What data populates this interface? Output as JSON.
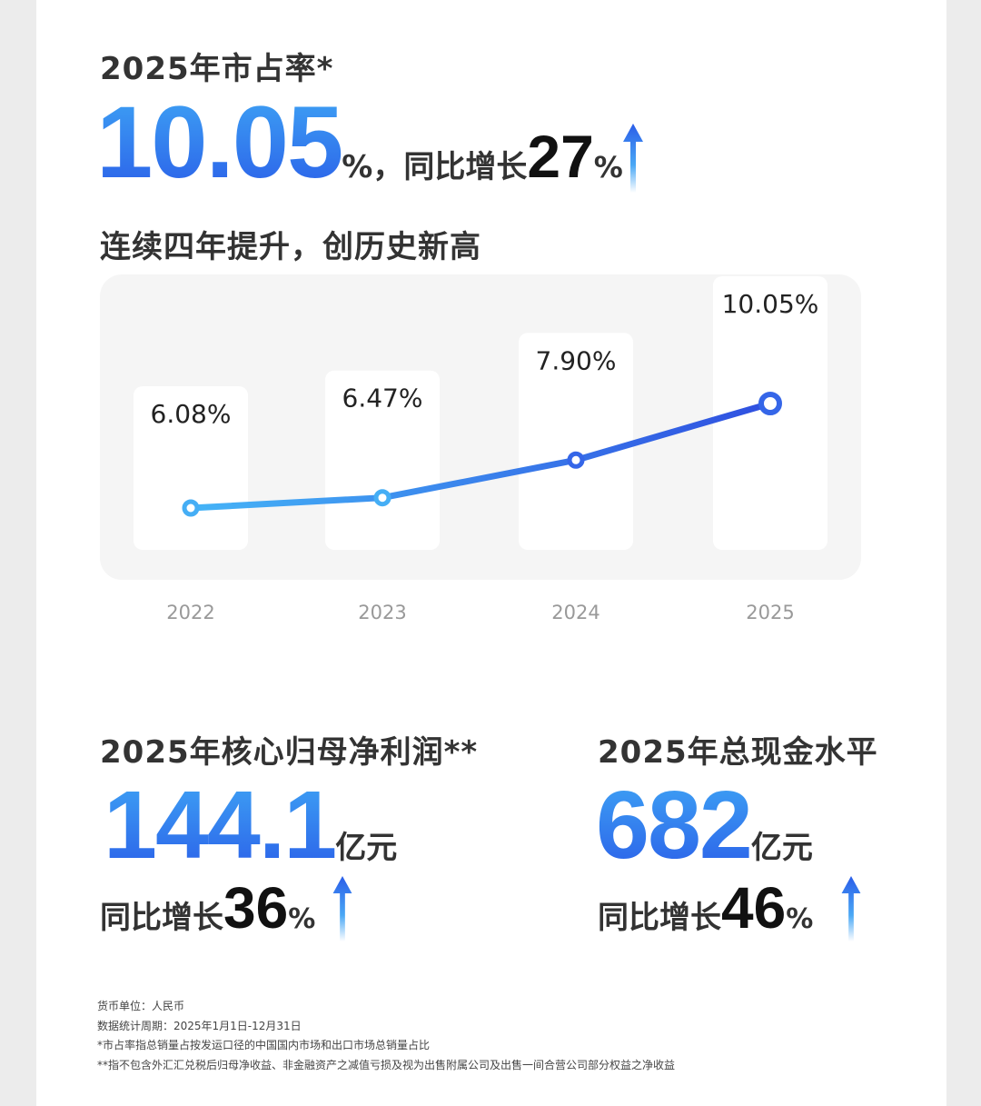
{
  "market_share": {
    "title": "2025年市占率*",
    "value": "10.05",
    "unit": "%，",
    "growth_label": "同比增长",
    "growth_value": "27",
    "growth_unit": "%",
    "subtitle": "连续四年提升，创历史新高"
  },
  "chart_data": {
    "type": "line",
    "categories": [
      "2022",
      "2023",
      "2024",
      "2025"
    ],
    "values": [
      6.08,
      6.47,
      7.9,
      10.05
    ],
    "data_labels": [
      "6.08%",
      "6.47%",
      "7.90%",
      "10.05%"
    ],
    "title": "",
    "xlabel": "",
    "ylabel": "",
    "grid": false,
    "colors": {
      "line_start": "#45b4f7",
      "line_end": "#2f4fe0",
      "panel": "#f5f5f5",
      "column": "#ffffff"
    }
  },
  "net_profit": {
    "title": "2025年核心归母净利润**",
    "value": "144.1",
    "unit": "亿元",
    "growth_label": "同比增长",
    "growth_value": "36",
    "growth_unit": "%"
  },
  "cash": {
    "title": "2025年总现金水平",
    "value": "682",
    "unit": "亿元",
    "growth_label": "同比增长",
    "growth_value": "46",
    "growth_unit": "%"
  },
  "footnotes": [
    "货币单位：人民币",
    "数据统计周期：2025年1月1日-12月31日",
    "*市占率指总销量占按发运口径的中国国内市场和出口市场总销量占比",
    "**指不包含外汇汇兑税后归母净收益、非金融资产之减值亏损及视为出售附属公司及出售一间合营公司部分权益之净收益"
  ],
  "icons": {
    "growth": "arrow-up-icon"
  },
  "colors": {
    "accent_top": "#3fa6f5",
    "accent_bottom": "#2a5de8",
    "text": "#333333"
  }
}
